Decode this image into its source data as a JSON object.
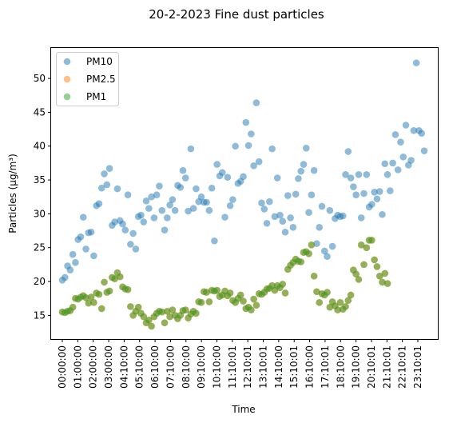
{
  "chart_data": {
    "type": "scatter",
    "title": "20-2-2023 Fine dust particles",
    "xlabel": "Time",
    "ylabel": "Particles (µg/m³)",
    "ylim": [
      11.5,
      54.5
    ],
    "y_ticks": [
      15,
      20,
      25,
      30,
      35,
      40,
      45,
      50
    ],
    "x_ticks": [
      "00:00:00",
      "01:00:00",
      "02:00:00",
      "03:00:00",
      "04:10:00",
      "05:10:00",
      "06:10:00",
      "07:10:00",
      "08:10:00",
      "09:10:00",
      "10:10:00",
      "11:10:01",
      "12:10:01",
      "13:10:01",
      "14:10:00",
      "15:10:01",
      "16:10:00",
      "17:10:01",
      "18:10:00",
      "19:10:00",
      "20:10:01",
      "21:10:01",
      "22:10:01",
      "23:10:01"
    ],
    "grid": false,
    "legend_position": "top-left",
    "series": [
      {
        "name": "PM10",
        "color": "#1f77b4",
        "values": [
          20.2,
          20.6,
          22.3,
          21.7,
          24.0,
          22.8,
          26.2,
          26.6,
          29.5,
          24.8,
          27.2,
          27.3,
          23.8,
          31.2,
          31.5,
          33.8,
          35.9,
          34.3,
          36.7,
          28.3,
          28.8,
          33.7,
          29.0,
          28.5,
          27.6,
          32.8,
          25.5,
          27.1,
          24.8,
          29.6,
          29.8,
          28.8,
          31.9,
          30.8,
          32.5,
          29.4,
          32.8,
          34.1,
          30.5,
          27.6,
          29.4,
          31.3,
          32.1,
          30.5,
          34.2,
          33.9,
          36.4,
          35.3,
          30.4,
          39.6,
          30.8,
          33.7,
          31.8,
          32.5,
          31.7,
          31.7,
          30.5,
          33.8,
          26.0,
          37.3,
          35.6,
          36.1,
          29.5,
          35.4,
          31.2,
          32.1,
          40.0,
          34.5,
          34.8,
          35.5,
          43.5,
          40.1,
          41.8,
          37.1,
          46.4,
          37.7,
          31.6,
          30.7,
          28.6,
          31.8,
          39.6,
          29.6,
          35.3,
          29.8,
          28.9,
          27.3,
          32.7,
          29.4,
          28.0,
          32.9,
          35.2,
          36.3,
          37.3,
          39.7,
          30.2,
          32.8,
          36.4,
          25.6,
          28.0,
          31.1,
          24.5,
          23.7,
          30.5,
          25.2,
          29.3,
          29.8,
          29.6,
          29.7,
          35.8,
          39.2,
          35.3,
          34.0,
          32.8,
          35.8,
          29.4,
          33.0,
          35.8,
          31.0,
          31.4,
          33.2,
          32.2,
          33.3,
          29.9,
          37.4,
          35.8,
          33.4,
          37.5,
          41.7,
          36.5,
          40.6,
          38.4,
          43.1,
          37.2,
          37.9,
          42.3,
          52.3,
          42.3,
          41.9,
          39.3
        ]
      },
      {
        "name": "PM2.5",
        "color": "#ff7f0e",
        "values": [
          15.5,
          15.4,
          15.6,
          15.7,
          16.2,
          17.5,
          17.4,
          17.7,
          17.9,
          17.6,
          16.8,
          17.7,
          16.9,
          18.3,
          18.1,
          16.0,
          19.9,
          18.4,
          18.6,
          20.6,
          20.4,
          21.3,
          20.7,
          19.2,
          18.9,
          18.8,
          16.3,
          15.0,
          15.6,
          16.2,
          15.3,
          14.8,
          13.9,
          14.3,
          13.4,
          14.8,
          15.3,
          15.6,
          15.5,
          13.9,
          15.6,
          14.8,
          15.8,
          15.0,
          14.5,
          15.0,
          15.7,
          15.8,
          14.6,
          15.2,
          15.6,
          15.3,
          17.0,
          16.9,
          18.5,
          18.4,
          17.0,
          18.7,
          18.6,
          18.7,
          17.8,
          18.0,
          18.6,
          17.9,
          18.3,
          17.2,
          16.9,
          17.5,
          18.0,
          17.1,
          16.0,
          16.2,
          15.8,
          17.4,
          16.5,
          18.2,
          18.1,
          18.4,
          18.9,
          19.0,
          19.4,
          18.7,
          19.4,
          19.1,
          19.6,
          18.3,
          21.8,
          22.4,
          22.8,
          23.3,
          23.0,
          22.9,
          24.3,
          24.4,
          24.1,
          25.4,
          20.8,
          18.5,
          16.9,
          18.2,
          18.0,
          18.4,
          16.2,
          17.0,
          16.4,
          15.8,
          16.9,
          15.9,
          16.3,
          17.2,
          18.0,
          21.7,
          21.1,
          20.3,
          25.4,
          22.5,
          25.0,
          26.1,
          26.1,
          23.2,
          22.2,
          20.8,
          19.9,
          21.2,
          19.7
        ]
      },
      {
        "name": "PM1",
        "color": "#2ca02c",
        "values": [
          15.5,
          15.4,
          15.6,
          15.7,
          16.2,
          17.5,
          17.4,
          17.7,
          17.9,
          17.6,
          16.8,
          17.7,
          16.9,
          18.3,
          18.1,
          16.0,
          19.9,
          18.4,
          18.6,
          20.6,
          20.4,
          21.3,
          20.7,
          19.2,
          18.9,
          18.8,
          16.3,
          15.0,
          15.6,
          16.2,
          15.3,
          14.8,
          13.9,
          14.3,
          13.4,
          14.8,
          15.3,
          15.6,
          15.5,
          13.9,
          15.6,
          14.8,
          15.8,
          15.0,
          14.5,
          15.0,
          15.7,
          15.8,
          14.6,
          15.2,
          15.6,
          15.3,
          17.0,
          16.9,
          18.5,
          18.4,
          17.0,
          18.7,
          18.6,
          18.7,
          17.8,
          18.0,
          18.6,
          17.9,
          18.3,
          17.2,
          16.9,
          17.5,
          18.0,
          17.1,
          16.0,
          16.2,
          15.8,
          17.4,
          16.5,
          18.2,
          18.1,
          18.4,
          18.9,
          19.0,
          19.4,
          18.7,
          19.4,
          19.1,
          19.6,
          18.3,
          21.8,
          22.4,
          22.8,
          23.3,
          23.0,
          22.9,
          24.3,
          24.4,
          24.1,
          25.4,
          20.8,
          18.5,
          16.9,
          18.2,
          18.0,
          18.4,
          16.2,
          17.0,
          16.4,
          15.8,
          16.9,
          15.9,
          16.3,
          17.2,
          18.0,
          21.7,
          21.1,
          20.3,
          25.4,
          22.5,
          25.0,
          26.1,
          26.1,
          23.2,
          22.2,
          20.8,
          19.9,
          21.2,
          19.7
        ]
      }
    ]
  }
}
